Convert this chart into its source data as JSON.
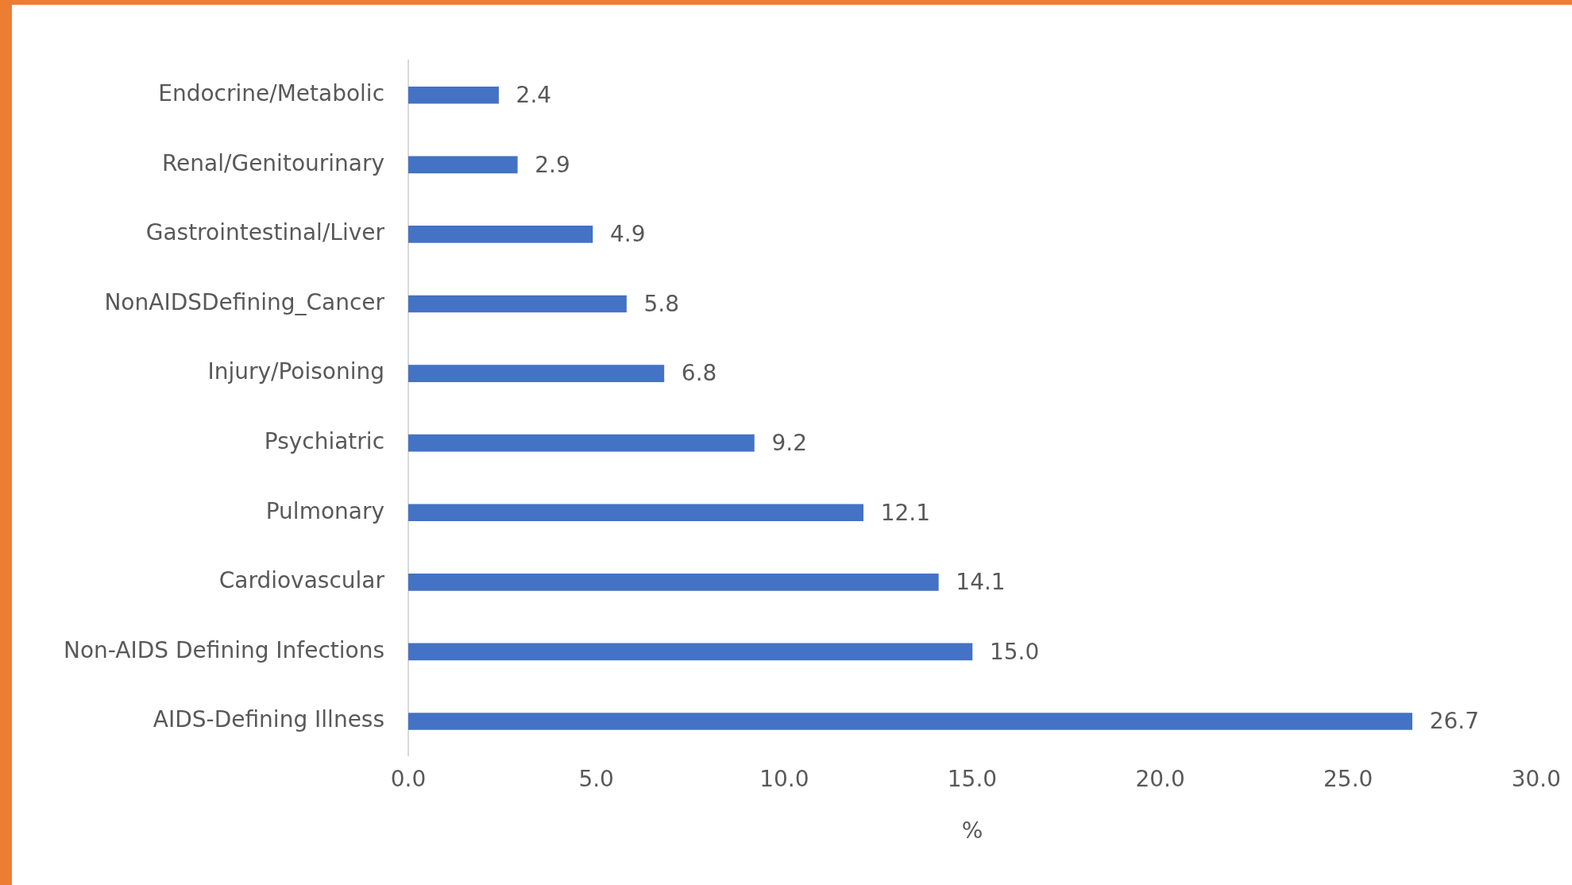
{
  "chart_data": {
    "type": "bar",
    "orientation": "horizontal",
    "xlabel": "%",
    "categories": [
      "Endocrine/Metabolic",
      "Renal/Genitourinary",
      "Gastrointestinal/Liver",
      "NonAIDSDefining_Cancer",
      "Injury/Poisoning",
      "Psychiatric",
      "Pulmonary",
      "Cardiovascular",
      "Non-AIDS Defining Infections",
      "AIDS-Defining Illness"
    ],
    "values": [
      2.4,
      2.9,
      4.9,
      5.8,
      6.8,
      9.2,
      12.1,
      14.1,
      15.0,
      26.7
    ],
    "value_labels": [
      "2.4",
      "2.9",
      "4.9",
      "5.8",
      "6.8",
      "9.2",
      "12.1",
      "14.1",
      "15.0",
      "26.7"
    ],
    "color": "#4472c4",
    "xlim": [
      0,
      30
    ],
    "xticks": [
      {
        "value": 0,
        "label": "0.0"
      },
      {
        "value": 5,
        "label": "5.0"
      },
      {
        "value": 10,
        "label": "10.0"
      },
      {
        "value": 15,
        "label": "15.0"
      },
      {
        "value": 20,
        "label": "20.0"
      },
      {
        "value": 25,
        "label": "25.0"
      },
      {
        "value": 30,
        "label": "30.0"
      }
    ],
    "grid": false,
    "legend": false
  }
}
